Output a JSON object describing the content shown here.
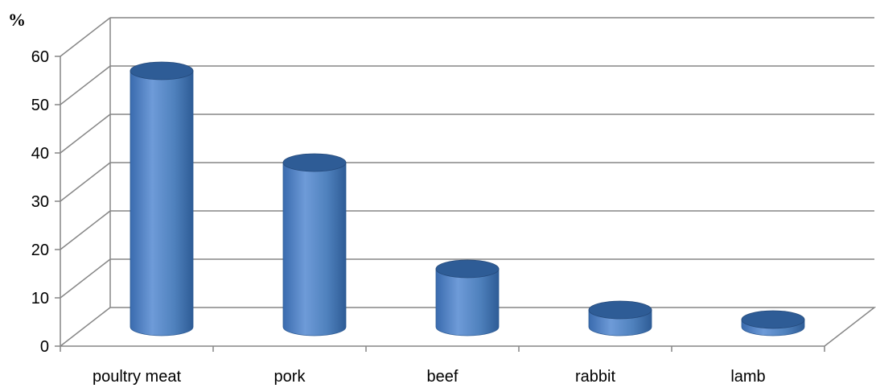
{
  "chart_data": {
    "type": "bar",
    "style": "3d-cylinder",
    "categories": [
      "poultry meat",
      "pork",
      "beef",
      "rabbit",
      "lamb"
    ],
    "values": [
      53,
      34,
      12,
      3.5,
      1.5
    ],
    "ylabel": "%",
    "xlabel": "",
    "ylim": [
      0,
      60
    ],
    "yticks": [
      0,
      10,
      20,
      30,
      40,
      50,
      60
    ],
    "grid": true,
    "legend": "none",
    "colors": {
      "bar": "#4F81BD",
      "bar_dark": "#2E5C96",
      "bar_light": "#7FA8DE",
      "grid": "#868686"
    }
  }
}
